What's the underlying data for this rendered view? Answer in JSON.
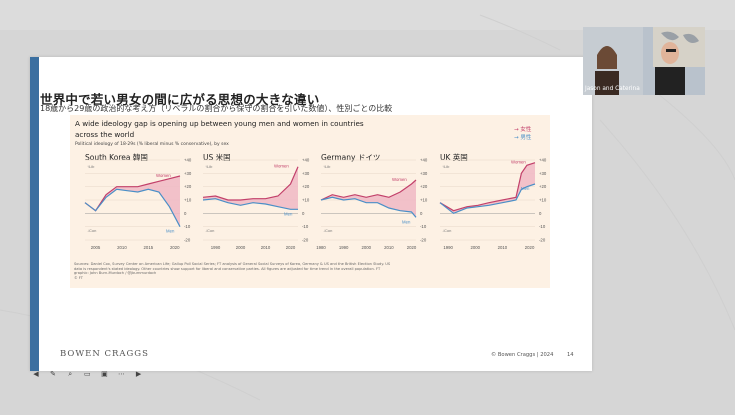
{
  "slide": {
    "title": "世界中で若い男女の間に広がる思想の大きな違い",
    "subtitle": "18歳から29歳の政治的な考え方（リベラルの割合から保守の割合を引いた数値）、性別ごとの比較",
    "logo": "BOWEN CRAGGS",
    "copyright": "© Bowen Craggs | 2024",
    "page_number": "14"
  },
  "chart": {
    "heading": "A wide ideology gap is opening up between young men and women in countries across the world",
    "sub": "Political ideology of 18-29s (% liberal minus % conservative), by sex",
    "legend_women": "→ 女性",
    "legend_men": "→ 男性",
    "source": "Sources: Daniel Cox, Survey Center on American Life; Gallup Poll Social Series; FT analysis of General Social Surveys of Korea, Germany & US and the British Election Study. US data is respondent's stated ideology. Other countries show support for liberal and conservative parties. All figures are adjusted for time trend in the overall population. FT graphic: John Burn-Murdoch / @jburnmurdoch",
    "source_end": "© FT"
  },
  "chart_data": [
    {
      "type": "line",
      "title": "South Korea 韓国",
      "x_ticks": [
        2005,
        2010,
        2015,
        2020
      ],
      "y_ticks": [
        40,
        30,
        20,
        10,
        0,
        -10,
        -20
      ],
      "ylim": [
        -20,
        40
      ],
      "annotation_top": "↑Lib",
      "annotation_bottom": "↓Con",
      "series": [
        {
          "name": "Women",
          "x": [
            2003,
            2005,
            2007,
            2009,
            2011,
            2013,
            2015,
            2017,
            2019,
            2021
          ],
          "values": [
            8,
            2,
            14,
            20,
            20,
            20,
            22,
            24,
            26,
            28
          ]
        },
        {
          "name": "Men",
          "x": [
            2003,
            2005,
            2007,
            2009,
            2011,
            2013,
            2015,
            2017,
            2019,
            2021
          ],
          "values": [
            8,
            2,
            12,
            18,
            17,
            16,
            18,
            16,
            5,
            -10
          ]
        }
      ]
    },
    {
      "type": "line",
      "title": "US 米国",
      "x_ticks": [
        1990,
        2000,
        2010,
        2020
      ],
      "y_ticks": [
        40,
        30,
        20,
        10,
        0,
        -10,
        -20
      ],
      "ylim": [
        -20,
        40
      ],
      "annotation_top": "↑Lib",
      "annotation_bottom": "↓Con",
      "series": [
        {
          "name": "Women",
          "x": [
            1985,
            1990,
            1995,
            2000,
            2005,
            2010,
            2015,
            2020,
            2023
          ],
          "values": [
            12,
            13,
            10,
            10,
            11,
            11,
            13,
            22,
            35
          ]
        },
        {
          "name": "Men",
          "x": [
            1985,
            1990,
            1995,
            2000,
            2005,
            2010,
            2015,
            2020,
            2023
          ],
          "values": [
            10,
            11,
            8,
            6,
            8,
            7,
            5,
            3,
            3
          ]
        }
      ]
    },
    {
      "type": "line",
      "title": "Germany ドイツ",
      "x_ticks": [
        1980,
        1990,
        2000,
        2010,
        2020
      ],
      "y_ticks": [
        40,
        30,
        20,
        10,
        0,
        -10,
        -20
      ],
      "ylim": [
        -20,
        40
      ],
      "annotation_top": "↑Lib",
      "annotation_bottom": "↓Con",
      "series": [
        {
          "name": "Women",
          "x": [
            1980,
            1985,
            1990,
            1995,
            2000,
            2005,
            2010,
            2015,
            2020,
            2022
          ],
          "values": [
            10,
            14,
            12,
            14,
            12,
            14,
            12,
            16,
            22,
            25
          ]
        },
        {
          "name": "Men",
          "x": [
            1980,
            1985,
            1990,
            1995,
            2000,
            2005,
            2010,
            2015,
            2020,
            2022
          ],
          "values": [
            10,
            12,
            10,
            11,
            8,
            8,
            4,
            2,
            1,
            -3
          ]
        }
      ]
    },
    {
      "type": "line",
      "title": "UK 英国",
      "x_ticks": [
        1990,
        2000,
        2010,
        2020
      ],
      "y_ticks": [
        40,
        30,
        20,
        10,
        0,
        -10,
        -20
      ],
      "ylim": [
        -20,
        40
      ],
      "annotation_top": "↑Lib",
      "annotation_bottom": "↓Con",
      "series": [
        {
          "name": "Women",
          "x": [
            1987,
            1992,
            1997,
            2001,
            2005,
            2010,
            2015,
            2017,
            2019,
            2022
          ],
          "values": [
            8,
            2,
            5,
            6,
            8,
            10,
            12,
            30,
            36,
            38
          ]
        },
        {
          "name": "Men",
          "x": [
            1987,
            1992,
            1997,
            2001,
            2005,
            2010,
            2015,
            2017,
            2019,
            2022
          ],
          "values": [
            8,
            0,
            4,
            5,
            6,
            8,
            10,
            18,
            20,
            22
          ]
        }
      ]
    }
  ],
  "webcam": {
    "name_label": "Jason and Caterina"
  },
  "toolbar": {
    "icons": [
      "back-arrow-icon",
      "pen-icon",
      "zoom-icon",
      "subtitles-icon",
      "camera-icon",
      "more-icon",
      "forward-arrow-icon"
    ]
  },
  "colors": {
    "women": "#c2406a",
    "women_fill": "#f0b9c4",
    "men": "#4a8fc7",
    "men_fill": "#b9d7ee",
    "panel": "#fdf1e4",
    "accent_bar": "#3b6fa0"
  }
}
